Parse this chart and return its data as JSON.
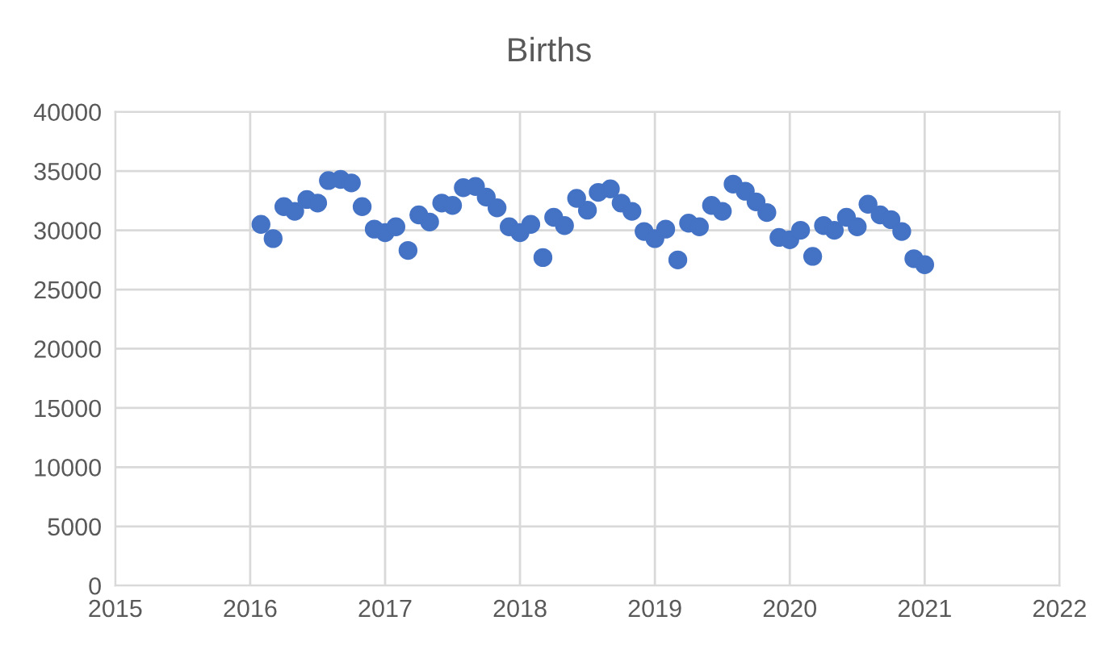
{
  "chart_data": {
    "type": "scatter",
    "title": "Births",
    "x": [
      2016.08,
      2016.17,
      2016.25,
      2016.33,
      2016.42,
      2016.5,
      2016.58,
      2016.67,
      2016.75,
      2016.83,
      2016.92,
      2017.0,
      2017.08,
      2017.17,
      2017.25,
      2017.33,
      2017.42,
      2017.5,
      2017.58,
      2017.67,
      2017.75,
      2017.83,
      2017.92,
      2018.0,
      2018.08,
      2018.17,
      2018.25,
      2018.33,
      2018.42,
      2018.5,
      2018.58,
      2018.67,
      2018.75,
      2018.83,
      2018.92,
      2019.0,
      2019.08,
      2019.17,
      2019.25,
      2019.33,
      2019.42,
      2019.5,
      2019.58,
      2019.67,
      2019.75,
      2019.83,
      2019.92,
      2020.0,
      2020.08,
      2020.17,
      2020.25,
      2020.33,
      2020.42,
      2020.5,
      2020.58,
      2020.67,
      2020.75,
      2020.83,
      2020.92,
      2021.0
    ],
    "series": [
      {
        "color": "#4472c4",
        "values": [
          30500,
          29300,
          32000,
          31600,
          32600,
          32300,
          34200,
          34300,
          34000,
          32000,
          30100,
          29800,
          30300,
          28300,
          31300,
          30700,
          32300,
          32100,
          33600,
          33700,
          32800,
          31900,
          30300,
          29800,
          30500,
          27700,
          31100,
          30400,
          32700,
          31700,
          33200,
          33500,
          32300,
          31600,
          29900,
          29300,
          30100,
          27500,
          30600,
          30300,
          32100,
          31600,
          33900,
          33300,
          32400,
          31500,
          29400,
          29200,
          30000,
          27800,
          30400,
          30000,
          31100,
          30300,
          32200,
          31300,
          30900,
          29900,
          27600,
          27100
        ]
      }
    ],
    "xlim": [
      2015,
      2022
    ],
    "xticks": [
      2015,
      2016,
      2017,
      2018,
      2019,
      2020,
      2021,
      2022
    ],
    "ylim": [
      0,
      40000
    ],
    "yticks": [
      0,
      5000,
      10000,
      15000,
      20000,
      25000,
      30000,
      35000,
      40000
    ],
    "grid": true,
    "marker": "circle"
  }
}
